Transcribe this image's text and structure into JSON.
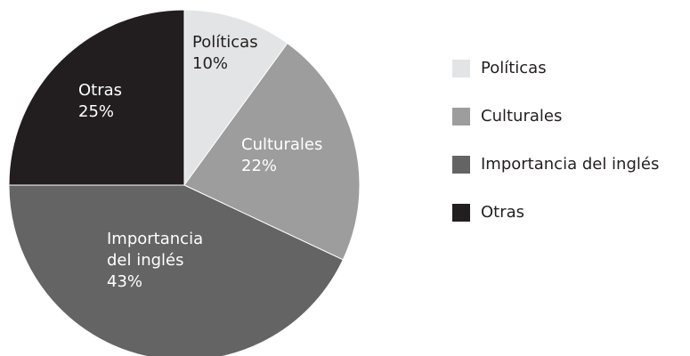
{
  "chart_data": {
    "type": "pie",
    "title": "",
    "slices": [
      {
        "label": "Políticas",
        "label_lines": [
          "Políticas"
        ],
        "value": 10,
        "display": "10%",
        "color": "#e3e4e5",
        "label_color": "#231f20"
      },
      {
        "label": "Culturales",
        "label_lines": [
          "Culturales"
        ],
        "value": 22,
        "display": "22%",
        "color": "#9d9d9e",
        "label_color": "#ffffff"
      },
      {
        "label": "Importancia del inglés",
        "label_lines": [
          "Importancia",
          "del inglés"
        ],
        "value": 43,
        "display": "43%",
        "color": "#646465",
        "label_color": "#ffffff"
      },
      {
        "label": "Otras",
        "label_lines": [
          "Otras"
        ],
        "value": 25,
        "display": "25%",
        "color": "#221e1f",
        "label_color": "#ffffff"
      }
    ],
    "start_angle": "12 o'clock",
    "direction": "clockwise",
    "legend_position": "right"
  }
}
